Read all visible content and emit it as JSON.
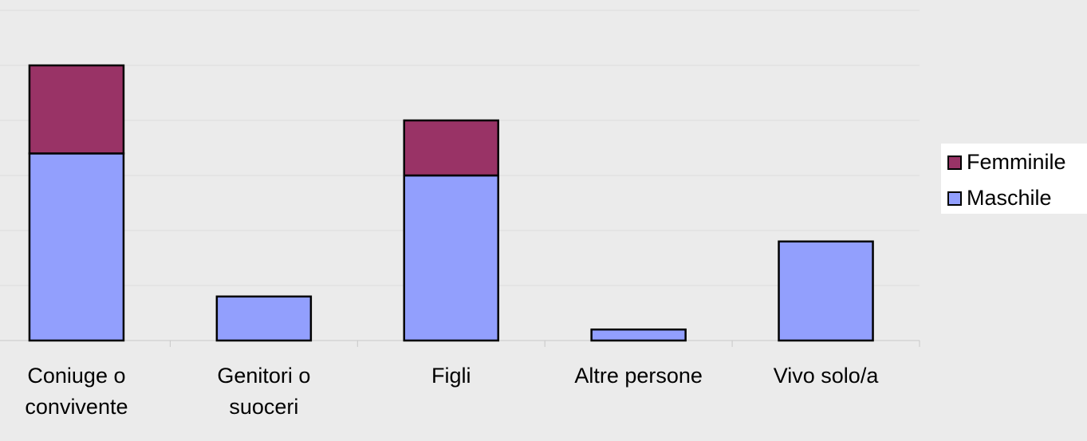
{
  "chart_data": {
    "type": "stacked_bar",
    "categories": [
      "Coniuge o convivente",
      "Genitori o suoceri",
      "Figli",
      "Altre persone",
      "Vivo solo/a"
    ],
    "series": [
      {
        "name": "Maschile",
        "color": "#929ffd",
        "values": [
          3.4,
          0.8,
          3,
          0.2,
          1.8
        ]
      },
      {
        "name": "Femminile",
        "color": "#993366",
        "values": [
          1.6,
          null,
          1,
          null,
          null
        ]
      }
    ],
    "ylim": [
      0,
      6
    ],
    "yticks": [
      0,
      1,
      2,
      3,
      4,
      5,
      6
    ],
    "grid": true,
    "legend": "right"
  }
}
